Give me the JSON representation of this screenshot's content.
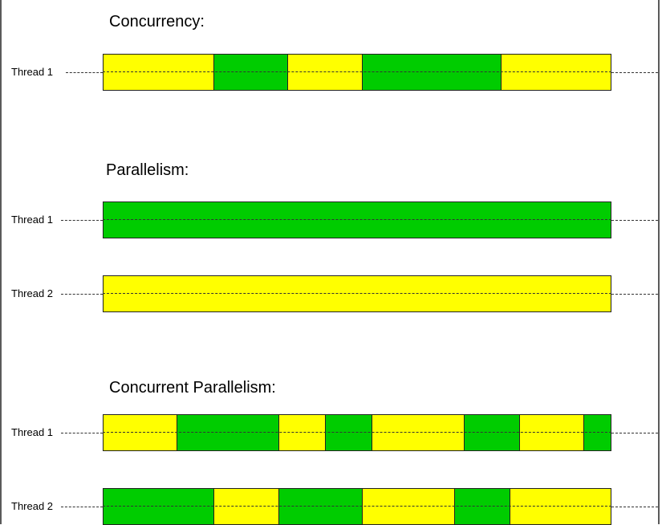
{
  "colors": {
    "green": "#00cc00",
    "yellow": "#ffff00"
  },
  "sections": [
    {
      "title": "Concurrency:",
      "threads": [
        {
          "label": "Thread 1",
          "segments": [
            {
              "color": "yellow",
              "units": 138
            },
            {
              "color": "green",
              "units": 92
            },
            {
              "color": "yellow",
              "units": 92
            },
            {
              "color": "green",
              "units": 173
            },
            {
              "color": "yellow",
              "units": 138
            }
          ]
        }
      ]
    },
    {
      "title": "Parallelism:",
      "threads": [
        {
          "label": "Thread 1",
          "segments": [
            {
              "color": "green",
              "units": 634
            }
          ]
        },
        {
          "label": "Thread 2",
          "segments": [
            {
              "color": "yellow",
              "units": 634
            }
          ]
        }
      ]
    },
    {
      "title": "Concurrent Parallelism:",
      "threads": [
        {
          "label": "Thread 1",
          "segments": [
            {
              "color": "yellow",
              "units": 92
            },
            {
              "color": "green",
              "units": 127
            },
            {
              "color": "yellow",
              "units": 58
            },
            {
              "color": "green",
              "units": 58
            },
            {
              "color": "yellow",
              "units": 115
            },
            {
              "color": "green",
              "units": 69
            },
            {
              "color": "yellow",
              "units": 80
            },
            {
              "color": "green",
              "units": 35
            }
          ]
        },
        {
          "label": "Thread 2",
          "segments": [
            {
              "color": "green",
              "units": 138
            },
            {
              "color": "yellow",
              "units": 81
            },
            {
              "color": "green",
              "units": 104
            },
            {
              "color": "yellow",
              "units": 115
            },
            {
              "color": "green",
              "units": 69
            },
            {
              "color": "yellow",
              "units": 127
            }
          ]
        }
      ]
    }
  ]
}
